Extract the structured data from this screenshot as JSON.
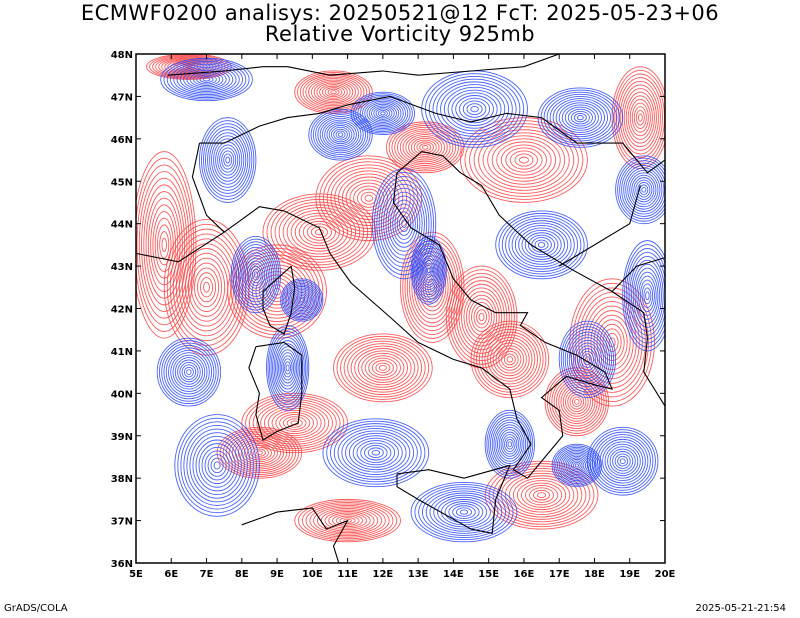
{
  "title_line1": "ECMWF0200 analisys: 20250521@12 FcT: 2025-05-23+06",
  "title_line2": "Relative Vorticity 925mb",
  "footer_left": "GrADS/COLA",
  "footer_right": "2025-05-21-21:54",
  "map": {
    "lon_range": [
      5,
      20
    ],
    "lat_range": [
      36,
      48
    ],
    "lon_ticks": [
      "5E",
      "6E",
      "7E",
      "8E",
      "9E",
      "10E",
      "11E",
      "12E",
      "13E",
      "14E",
      "15E",
      "16E",
      "17E",
      "18E",
      "19E",
      "20E"
    ],
    "lat_ticks": [
      "36N",
      "37N",
      "38N",
      "39N",
      "40N",
      "41N",
      "42N",
      "43N",
      "44N",
      "45N",
      "46N",
      "47N",
      "48N"
    ],
    "colors": {
      "positive": "#ff3c3c",
      "negative": "#2846ff",
      "coast": "#000000",
      "frame": "#000000"
    }
  }
}
